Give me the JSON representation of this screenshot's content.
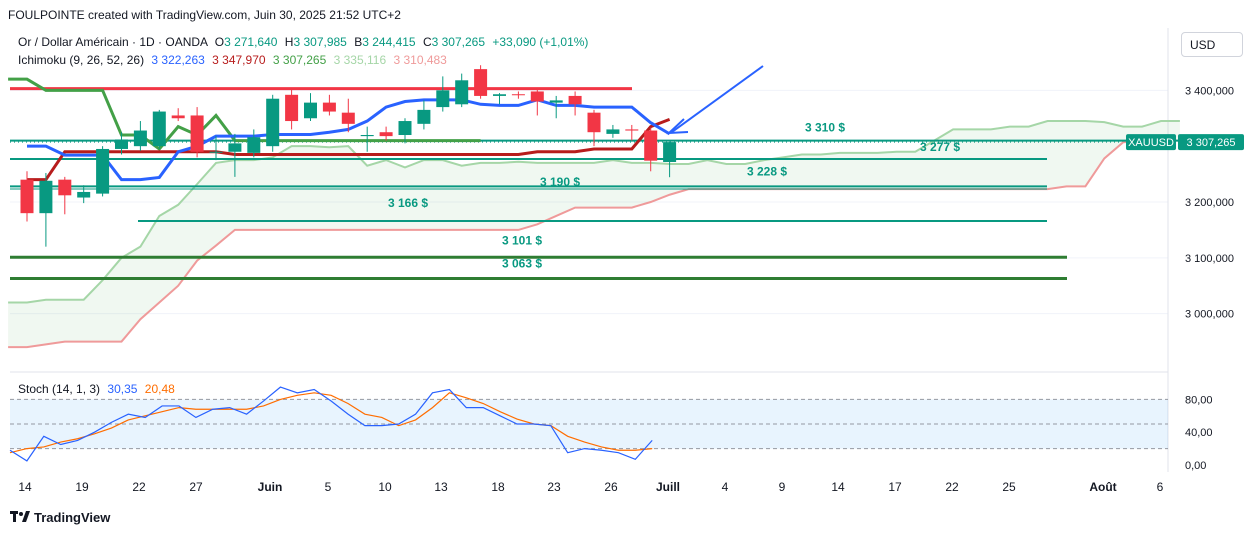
{
  "header": {
    "text": "FOULPOINTE created with TradingView.com, Juin 30, 2025 21:52 UTC+2"
  },
  "legend": {
    "symbol": "Or / Dollar Américain · 1D · OANDA",
    "o_label": "O",
    "o": "3 271,640",
    "h_label": "H",
    "h": "3 307,985",
    "b_label": "B",
    "b": "3 244,415",
    "c_label": "C",
    "c": "3 307,265",
    "change": "+33,090 (+1,01%)",
    "ichimoku_label": "Ichimoku (9, 26, 52, 26)",
    "ichimoku_values": [
      "3 322,263",
      "3 347,970",
      "3 307,265",
      "3 335,116",
      "3 310,483"
    ],
    "stoch_label": "Stoch (14, 1, 3)",
    "stoch_k": "30,35",
    "stoch_d": "20,48"
  },
  "currency_button": "USD",
  "footer": {
    "brand": "TradingView"
  },
  "colors": {
    "up": "#089981",
    "down": "#f23645",
    "tenkan": "#2962ff",
    "kijun": "#b71c1c",
    "lagging": "#43a047",
    "span_a": "#a5d6a7",
    "span_b": "#ef9a9a",
    "stoch_k": "#2962ff",
    "stoch_d": "#ff6d00",
    "arrow": "#2962ff"
  },
  "chart_data": {
    "type": "candlestick",
    "symbol_tag": "XAUUSD",
    "last_price_label": "3 307,265",
    "y_ticks": [
      "3 400,000",
      "3 200,000",
      "3 100,000",
      "3 000,000"
    ],
    "y_tick_values": [
      3400,
      3200,
      3100,
      3000
    ],
    "x_ticks": [
      "14",
      "19",
      "22",
      "27",
      "Juin",
      "5",
      "10",
      "13",
      "18",
      "23",
      "26",
      "Juill",
      "4",
      "9",
      "14",
      "17",
      "22",
      "25",
      "Août",
      "6"
    ],
    "x_tick_bold": [
      "Juin",
      "Juill",
      "Août"
    ],
    "candles": [
      {
        "o": 3240,
        "h": 3255,
        "l": 3165,
        "c": 3180
      },
      {
        "o": 3180,
        "h": 3252,
        "l": 3120,
        "c": 3238
      },
      {
        "o": 3240,
        "h": 3245,
        "l": 3178,
        "c": 3212
      },
      {
        "o": 3208,
        "h": 3230,
        "l": 3198,
        "c": 3218
      },
      {
        "o": 3215,
        "h": 3300,
        "l": 3210,
        "c": 3295
      },
      {
        "o": 3295,
        "h": 3325,
        "l": 3285,
        "c": 3312
      },
      {
        "o": 3300,
        "h": 3345,
        "l": 3292,
        "c": 3328
      },
      {
        "o": 3300,
        "h": 3365,
        "l": 3295,
        "c": 3362
      },
      {
        "o": 3355,
        "h": 3368,
        "l": 3345,
        "c": 3350
      },
      {
        "o": 3355,
        "h": 3370,
        "l": 3280,
        "c": 3290
      },
      {
        "o": 3290,
        "h": 3318,
        "l": 3275,
        "c": 3290
      },
      {
        "o": 3290,
        "h": 3322,
        "l": 3245,
        "c": 3305
      },
      {
        "o": 3288,
        "h": 3330,
        "l": 3280,
        "c": 3316
      },
      {
        "o": 3300,
        "h": 3392,
        "l": 3290,
        "c": 3385
      },
      {
        "o": 3392,
        "h": 3402,
        "l": 3330,
        "c": 3345
      },
      {
        "o": 3350,
        "h": 3395,
        "l": 3345,
        "c": 3378
      },
      {
        "o": 3378,
        "h": 3392,
        "l": 3355,
        "c": 3362
      },
      {
        "o": 3360,
        "h": 3385,
        "l": 3325,
        "c": 3340
      },
      {
        "o": 3318,
        "h": 3335,
        "l": 3290,
        "c": 3320
      },
      {
        "o": 3325,
        "h": 3335,
        "l": 3310,
        "c": 3318
      },
      {
        "o": 3320,
        "h": 3350,
        "l": 3305,
        "c": 3345
      },
      {
        "o": 3340,
        "h": 3382,
        "l": 3330,
        "c": 3365
      },
      {
        "o": 3370,
        "h": 3425,
        "l": 3362,
        "c": 3400
      },
      {
        "o": 3375,
        "h": 3430,
        "l": 3370,
        "c": 3418
      },
      {
        "o": 3438,
        "h": 3445,
        "l": 3385,
        "c": 3390
      },
      {
        "o": 3390,
        "h": 3395,
        "l": 3375,
        "c": 3393
      },
      {
        "o": 3393,
        "h": 3398,
        "l": 3385,
        "c": 3392
      },
      {
        "o": 3398,
        "h": 3405,
        "l": 3355,
        "c": 3380
      },
      {
        "o": 3378,
        "h": 3390,
        "l": 3350,
        "c": 3382
      },
      {
        "o": 3390,
        "h": 3398,
        "l": 3355,
        "c": 3375
      },
      {
        "o": 3360,
        "h": 3365,
        "l": 3300,
        "c": 3325
      },
      {
        "o": 3322,
        "h": 3338,
        "l": 3315,
        "c": 3330
      },
      {
        "o": 3330,
        "h": 3338,
        "l": 3310,
        "c": 3328
      },
      {
        "o": 3328,
        "h": 3333,
        "l": 3255,
        "c": 3274
      },
      {
        "o": 3271.64,
        "h": 3307.985,
        "l": 3244.415,
        "c": 3307.265
      }
    ],
    "tenkan": [
      3300,
      3300,
      3284,
      3284,
      3284,
      3240,
      3240,
      3244,
      3290,
      3300,
      3318,
      3318,
      3318,
      3321,
      3321,
      3321,
      3325,
      3330,
      3345,
      3370,
      3380,
      3383,
      3383,
      3383,
      3375,
      3373,
      3373,
      3383,
      3373,
      3373,
      3370,
      3370,
      3370,
      3342,
      3322
    ],
    "kijun": [
      3240,
      3240,
      3290,
      3290,
      3290,
      3290,
      3290,
      3290,
      3290,
      3290,
      3290,
      3285,
      3285,
      3285,
      3285,
      3285,
      3285,
      3285,
      3285,
      3285,
      3285,
      3285,
      3285,
      3285,
      3285,
      3285,
      3285,
      3290,
      3290,
      3290,
      3295,
      3295,
      3295,
      3335,
      3348
    ],
    "lagging": [
      3420,
      3420,
      3400,
      3400,
      3400,
      3400,
      3320,
      3320,
      3295,
      3335,
      3320,
      3355,
      3310,
      3310,
      3310,
      3310,
      3310,
      3310,
      3310,
      3310,
      3310,
      3310,
      3310,
      3310,
      3310,
      3310
    ],
    "span_a": [
      3020,
      3020,
      3025,
      3025,
      3025,
      3060,
      3100,
      3120,
      3175,
      3195,
      3232,
      3270,
      3275,
      3275,
      3280,
      3300,
      3300,
      3298,
      3300,
      3265,
      3275,
      3262,
      3275,
      3275,
      3265,
      3270,
      3270,
      3272,
      3270,
      3270,
      3270,
      3270,
      3275,
      3270,
      3270,
      3268,
      3268,
      3275,
      3268,
      3268,
      3275,
      3280,
      3285,
      3285,
      3288,
      3288,
      3288,
      3290,
      3290,
      3310,
      3330,
      3330,
      3330,
      3335,
      3335,
      3345,
      3345,
      3345,
      3343,
      3335,
      3335,
      3345,
      3345
    ],
    "span_b": [
      2940,
      2940,
      2945,
      2950,
      2950,
      2950,
      2950,
      2990,
      3020,
      3050,
      3095,
      3122,
      3150,
      3150,
      3150,
      3150,
      3150,
      3150,
      3150,
      3150,
      3150,
      3150,
      3150,
      3150,
      3150,
      3150,
      3150,
      3150,
      3160,
      3175,
      3190,
      3190,
      3190,
      3190,
      3200,
      3213,
      3223,
      3223,
      3223,
      3223,
      3223,
      3223,
      3223,
      3223,
      3223,
      3223,
      3223,
      3223,
      3223,
      3223,
      3223,
      3223,
      3223,
      3223,
      3223,
      3223,
      3228,
      3228,
      3278,
      3307,
      3310,
      3310,
      3310
    ],
    "levels": [
      {
        "label": "3 310 $",
        "value": 3310
      },
      {
        "label": "3 277 $",
        "value": 3277
      },
      {
        "label": "3 228 $",
        "value": 3228
      },
      {
        "label": "3 190 $",
        "value": 3190
      },
      {
        "label": "3 166 $",
        "value": 3166
      },
      {
        "label": "3 101 $",
        "value": 3101
      },
      {
        "label": "3 063 $",
        "value": 3063
      }
    ],
    "resistance_value": 3430,
    "stoch": {
      "ticks": [
        "80,00",
        "40,00",
        "0,00"
      ],
      "tick_values": [
        80,
        40,
        0
      ],
      "bands": [
        80,
        50,
        20
      ],
      "k": [
        18,
        5,
        35,
        25,
        30,
        40,
        52,
        62,
        58,
        72,
        72,
        58,
        68,
        70,
        62,
        78,
        95,
        88,
        92,
        78,
        62,
        48,
        48,
        50,
        62,
        88,
        92,
        70,
        70,
        60,
        50,
        50,
        48,
        15,
        20,
        18,
        15,
        7,
        30
      ],
      "d": [
        15,
        20,
        22,
        28,
        32,
        38,
        45,
        55,
        60,
        65,
        70,
        68,
        68,
        68,
        68,
        72,
        80,
        85,
        88,
        85,
        75,
        62,
        58,
        48,
        55,
        70,
        88,
        82,
        75,
        65,
        56,
        50,
        48,
        35,
        28,
        22,
        18,
        18,
        20
      ]
    }
  }
}
